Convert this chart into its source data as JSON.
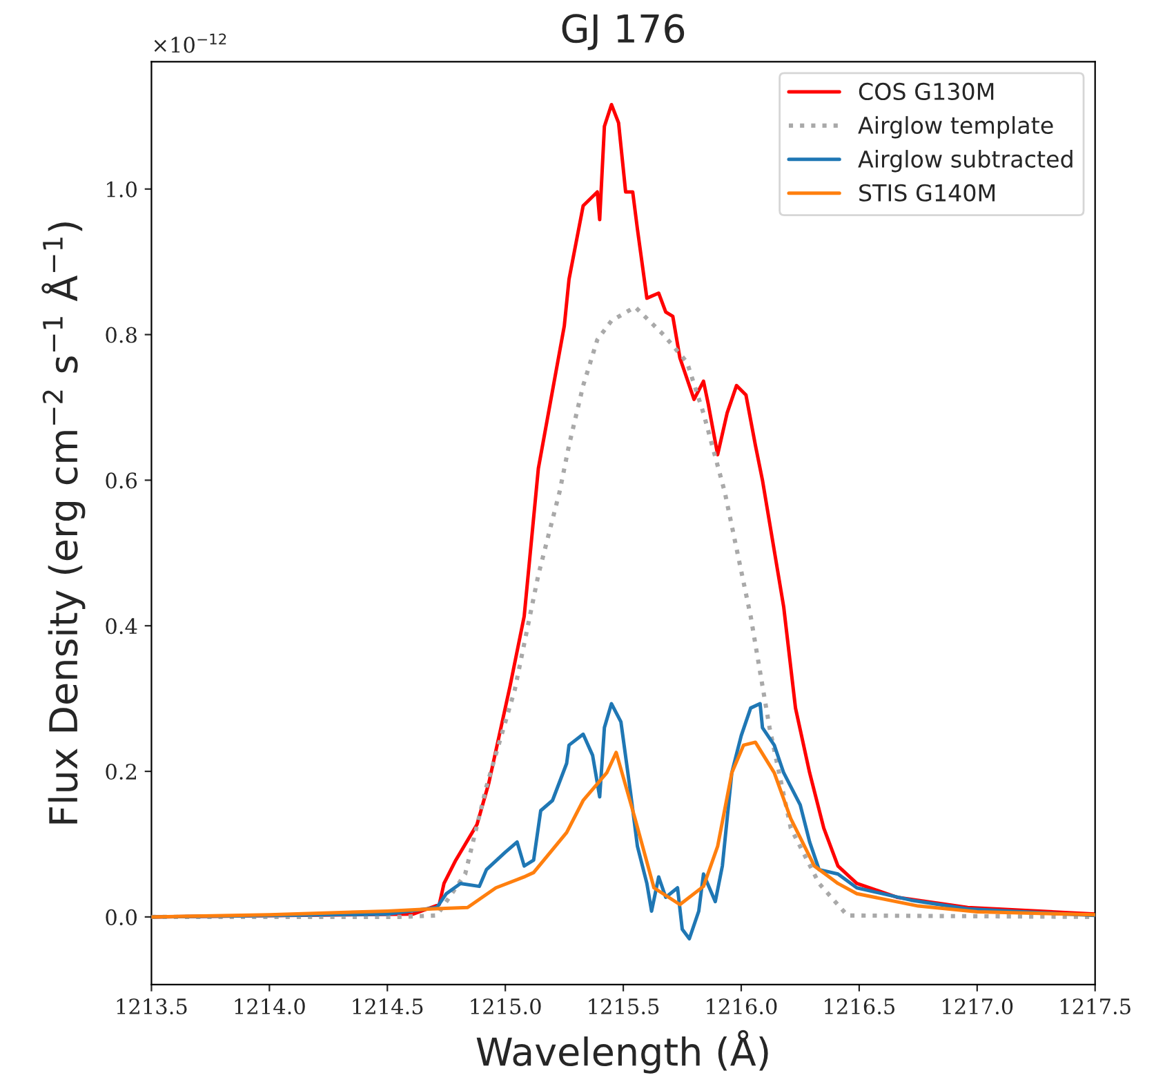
{
  "chart_data": {
    "type": "line",
    "title": "GJ 176",
    "xlabel": "Wavelength (Å)",
    "ylabel": "Flux Density (erg cm$^{−2}$ s$^{−1}$ Å$^{−1}$)",
    "annotations": [
      "×10$^{−12}$"
    ],
    "xlim": [
      1213.5,
      1217.5
    ],
    "xticks": [
      {
        "value": 1213.5,
        "label": "1213.5"
      },
      {
        "value": 1214.0,
        "label": "1214.0"
      },
      {
        "value": 1214.5,
        "label": "1214.5"
      },
      {
        "value": 1215.0,
        "label": "1215.0"
      },
      {
        "value": 1215.5,
        "label": "1215.5"
      },
      {
        "value": 1216.0,
        "label": "1216.0"
      },
      {
        "value": 1216.5,
        "label": "1216.5"
      },
      {
        "value": 1217.0,
        "label": "1217.0"
      },
      {
        "value": 1217.5,
        "label": "1217.5"
      }
    ],
    "ylim": [
      -0.093,
      1.175
    ],
    "yticks": [
      {
        "value": 0,
        "label": "0.0"
      },
      0.2,
      0.4,
      0.6,
      0.8,
      {
        "value": 1,
        "label": "1.0"
      }
    ],
    "grid": false,
    "legend": "top right",
    "marker": "none",
    "series": [
      {
        "name": "COS G130M",
        "color": "#ff0000",
        "line_style": "solid",
        "x": [
          1213.5,
          1214.61,
          1214.72,
          1214.74,
          1214.79,
          1214.88,
          1214.93,
          1215.02,
          1215.08,
          1215.14,
          1215.25,
          1215.27,
          1215.33,
          1215.39,
          1215.4,
          1215.42,
          1215.45,
          1215.48,
          1215.51,
          1215.54,
          1215.56,
          1215.6,
          1215.65,
          1215.68,
          1215.71,
          1215.74,
          1215.8,
          1215.84,
          1215.86,
          1215.9,
          1215.94,
          1215.98,
          1216.02,
          1216.06,
          1216.09,
          1216.18,
          1216.23,
          1216.29,
          1216.35,
          1216.41,
          1216.49,
          1216.66,
          1216.96,
          1217.5
        ],
        "values": [
          0.0,
          0.004,
          0.017,
          0.046,
          0.078,
          0.127,
          0.184,
          0.317,
          0.413,
          0.616,
          0.812,
          0.876,
          0.977,
          0.996,
          0.958,
          1.086,
          1.116,
          1.091,
          0.996,
          0.996,
          0.945,
          0.85,
          0.857,
          0.831,
          0.825,
          0.768,
          0.711,
          0.736,
          0.705,
          0.635,
          0.692,
          0.73,
          0.717,
          0.648,
          0.6,
          0.426,
          0.287,
          0.198,
          0.122,
          0.07,
          0.046,
          0.027,
          0.013,
          0.004
        ]
      },
      {
        "name": "Airglow template",
        "color": "#a9a9a9",
        "line_style": "dotted",
        "x": [
          1213.5,
          1214.55,
          1214.71,
          1214.83,
          1214.92,
          1215.04,
          1215.14,
          1215.23,
          1215.27,
          1215.33,
          1215.39,
          1215.45,
          1215.55,
          1215.67,
          1215.77,
          1215.84,
          1215.93,
          1216.04,
          1216.12,
          1216.21,
          1216.33,
          1216.45,
          1217.5
        ],
        "values": [
          0.0,
          0.0,
          0.002,
          0.059,
          0.179,
          0.312,
          0.47,
          0.584,
          0.648,
          0.73,
          0.793,
          0.819,
          0.838,
          0.8,
          0.762,
          0.692,
          0.584,
          0.413,
          0.26,
          0.122,
          0.046,
          0.002,
          0.0
        ]
      },
      {
        "name": "Airglow subtracted",
        "color": "#1f77b4",
        "line_style": "solid",
        "x": [
          1213.5,
          1214.03,
          1214.5,
          1214.71,
          1214.75,
          1214.81,
          1214.89,
          1214.92,
          1215.0,
          1215.05,
          1215.08,
          1215.12,
          1215.15,
          1215.2,
          1215.26,
          1215.27,
          1215.33,
          1215.37,
          1215.4,
          1215.42,
          1215.45,
          1215.49,
          1215.53,
          1215.56,
          1215.6,
          1215.62,
          1215.65,
          1215.68,
          1215.73,
          1215.75,
          1215.78,
          1215.82,
          1215.84,
          1215.89,
          1215.92,
          1215.96,
          1216.0,
          1216.04,
          1216.08,
          1216.09,
          1216.14,
          1216.18,
          1216.21,
          1216.25,
          1216.29,
          1216.33,
          1216.41,
          1216.49,
          1216.72,
          1216.96,
          1217.25,
          1217.5
        ],
        "values": [
          0.0,
          0.002,
          0.004,
          0.013,
          0.032,
          0.046,
          0.042,
          0.065,
          0.089,
          0.103,
          0.07,
          0.078,
          0.146,
          0.16,
          0.211,
          0.236,
          0.251,
          0.222,
          0.165,
          0.26,
          0.293,
          0.268,
          0.173,
          0.097,
          0.046,
          0.008,
          0.055,
          0.027,
          0.04,
          -0.017,
          -0.03,
          0.008,
          0.059,
          0.021,
          0.07,
          0.198,
          0.249,
          0.287,
          0.293,
          0.26,
          0.236,
          0.198,
          0.179,
          0.154,
          0.103,
          0.065,
          0.059,
          0.04,
          0.023,
          0.011,
          0.006,
          0.002
        ]
      },
      {
        "name": "STIS G140M",
        "color": "#ff7f0e",
        "line_style": "solid",
        "x": [
          1213.5,
          1214.0,
          1214.5,
          1214.69,
          1214.84,
          1214.96,
          1215.08,
          1215.12,
          1215.26,
          1215.33,
          1215.43,
          1215.47,
          1215.55,
          1215.63,
          1215.74,
          1215.84,
          1215.9,
          1215.96,
          1216.01,
          1216.06,
          1216.14,
          1216.21,
          1216.31,
          1216.41,
          1216.49,
          1216.75,
          1217.0,
          1217.5
        ],
        "values": [
          0.0,
          0.003,
          0.008,
          0.011,
          0.013,
          0.04,
          0.055,
          0.061,
          0.116,
          0.16,
          0.198,
          0.226,
          0.135,
          0.04,
          0.017,
          0.042,
          0.097,
          0.198,
          0.236,
          0.24,
          0.198,
          0.135,
          0.07,
          0.046,
          0.032,
          0.015,
          0.007,
          0.003
        ]
      }
    ]
  }
}
